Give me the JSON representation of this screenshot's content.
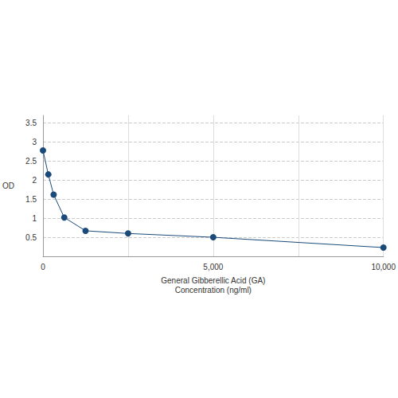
{
  "chart_data": {
    "type": "line",
    "xlabel": "General Gibberellic Acid (GA)\nConcentration (ng/ml)",
    "ylabel": "OD",
    "x": [
      0,
      156.25,
      312.5,
      625,
      1250,
      2500,
      5000,
      10000
    ],
    "values": [
      2.78,
      2.15,
      1.62,
      1.02,
      0.67,
      0.6,
      0.5,
      0.23
    ],
    "color": "#1a4a7a",
    "marker": "circle",
    "xlim": [
      0,
      10000
    ],
    "xticks": [
      0,
      5000,
      10000
    ],
    "ylim": [
      0,
      3.7
    ],
    "yticks": [
      0.5,
      1,
      1.5,
      2,
      2.5,
      3,
      3.5
    ],
    "grid": true
  }
}
